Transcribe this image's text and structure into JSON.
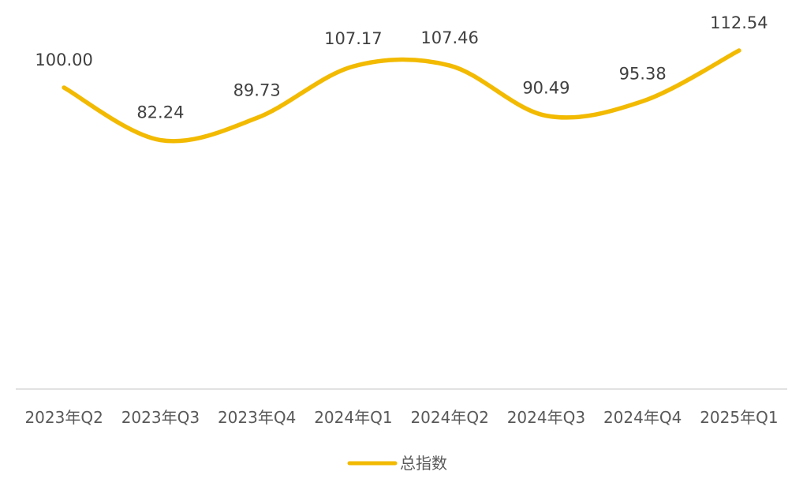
{
  "chart_data": {
    "type": "line",
    "categories": [
      "2023年Q2",
      "2023年Q3",
      "2023年Q4",
      "2024年Q1",
      "2024年Q2",
      "2024年Q3",
      "2024年Q4",
      "2025年Q1"
    ],
    "series": [
      {
        "name": "总指数",
        "values": [
          100.0,
          82.24,
          89.73,
          107.17,
          107.46,
          90.49,
          95.38,
          112.54
        ],
        "labels": [
          "100.00",
          "82.24",
          "89.73",
          "107.17",
          "107.46",
          "90.49",
          "95.38",
          "112.54"
        ],
        "color": "#F2BA00"
      }
    ],
    "smooth": true,
    "grid": false,
    "legend": "bottom-center",
    "title": "",
    "xlabel": "",
    "ylabel": ""
  }
}
